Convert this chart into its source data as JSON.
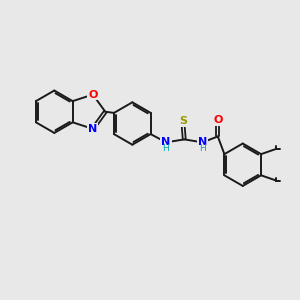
{
  "background_color": "#e8e8e8",
  "bond_color": "#1a1a1a",
  "atom_colors": {
    "N": "#0000ff",
    "O": "#ff0000",
    "S": "#999900",
    "C": "#1a1a1a"
  },
  "font_size_atom": 8.0,
  "figure_size": [
    3.0,
    3.0
  ],
  "dpi": 100
}
